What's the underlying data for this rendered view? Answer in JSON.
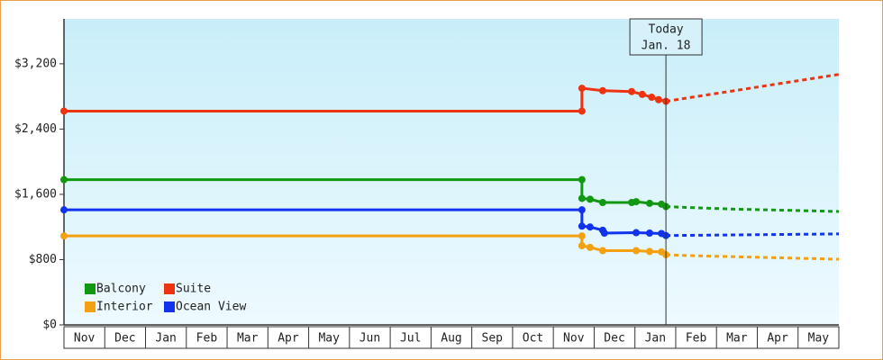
{
  "chart_data": {
    "type": "line",
    "categories": [
      "Nov",
      "Dec",
      "Jan",
      "Feb",
      "Mar",
      "Apr",
      "May",
      "Jun",
      "Jul",
      "Aug",
      "Sep",
      "Oct",
      "Nov",
      "Dec",
      "Jan",
      "Feb",
      "Mar",
      "Apr",
      "May"
    ],
    "xlim": [
      0,
      19
    ],
    "ylim": [
      0,
      3750
    ],
    "yticks": [
      {
        "value": 0,
        "label": "$0"
      },
      {
        "value": 800,
        "label": "$800"
      },
      {
        "value": 1600,
        "label": "$1,600"
      },
      {
        "value": 2400,
        "label": "$2,400"
      },
      {
        "value": 3200,
        "label": "$3,200"
      }
    ],
    "today": {
      "x": 14.76,
      "label": [
        "Today",
        "Jan. 18"
      ]
    },
    "series": [
      {
        "name": "Balcony",
        "color": "#119911",
        "x": [
          0,
          12.7,
          12.7,
          12.9,
          13.21,
          13.92,
          14.03,
          14.36,
          14.65,
          14.76
        ],
        "values": [
          1780,
          1780,
          1550,
          1540,
          1500,
          1500,
          1510,
          1490,
          1480,
          1450
        ],
        "forecast_x": [
          14.76,
          15.25,
          16.35,
          19
        ],
        "forecast_values": [
          1450,
          1440,
          1420,
          1390
        ]
      },
      {
        "name": "Suite",
        "color": "#ee3311",
        "x": [
          0,
          12.7,
          12.7,
          13.21,
          13.92,
          14.18,
          14.41,
          14.58,
          14.76
        ],
        "values": [
          2620,
          2620,
          2900,
          2870,
          2860,
          2825,
          2790,
          2760,
          2740
        ],
        "forecast_x": [
          14.76,
          19
        ],
        "forecast_values": [
          2740,
          3070
        ]
      },
      {
        "name": "Interior",
        "color": "#f5a010",
        "x": [
          0,
          12.7,
          12.7,
          12.9,
          13.21,
          14.03,
          14.36,
          14.65,
          14.76
        ],
        "values": [
          1090,
          1090,
          970,
          950,
          910,
          910,
          900,
          895,
          860
        ],
        "forecast_x": [
          14.76,
          15.25,
          19
        ],
        "forecast_values": [
          860,
          850,
          805
        ]
      },
      {
        "name": "Ocean View",
        "color": "#1133ee",
        "x": [
          0,
          12.7,
          12.7,
          12.9,
          13.21,
          13.25,
          14.03,
          14.36,
          14.65,
          14.76
        ],
        "values": [
          1410,
          1410,
          1210,
          1200,
          1160,
          1125,
          1130,
          1125,
          1120,
          1095
        ],
        "forecast_x": [
          14.76,
          19
        ],
        "forecast_values": [
          1095,
          1115
        ]
      }
    ]
  }
}
